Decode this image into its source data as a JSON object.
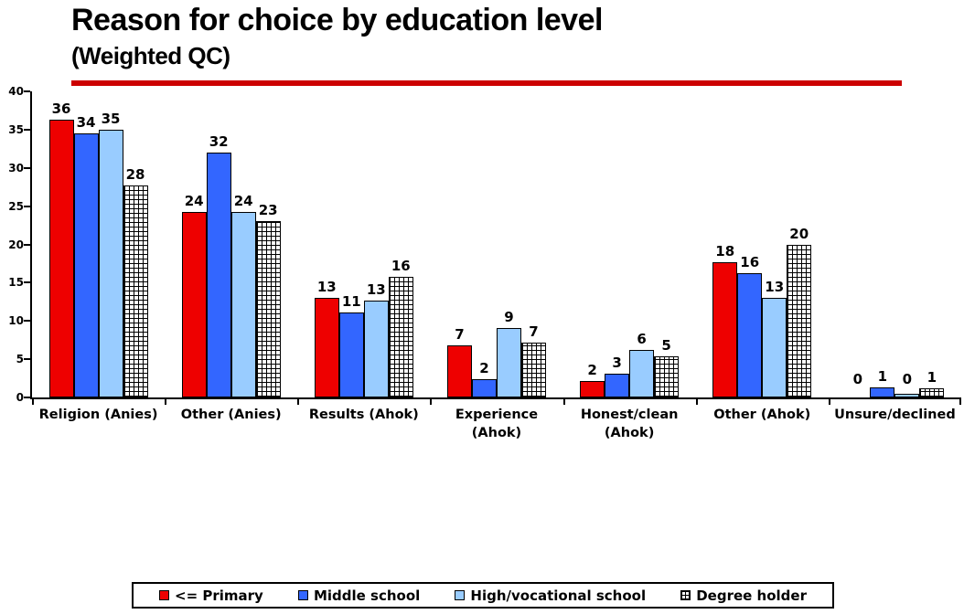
{
  "header": {
    "title": "Reason for choice by education level",
    "subtitle": "(Weighted QC)",
    "rule_color": "#CC0000"
  },
  "chart_data": {
    "type": "bar",
    "title": "Reason for choice by education level (Weighted QC)",
    "xlabel": "",
    "ylabel": "",
    "grid": false,
    "legend_position": "bottom",
    "y_axis": {
      "min": 0,
      "max": 40,
      "tick_step": 5,
      "ticks": [
        0,
        5,
        10,
        15,
        20,
        25,
        30,
        35,
        40
      ]
    },
    "categories": [
      "Religion (Anies)",
      "Other (Anies)",
      "Results (Ahok)",
      "Experience (Ahok)",
      "Honest/clean (Ahok)",
      "Other (Ahok)",
      "Unsure/declined"
    ],
    "series": [
      {
        "name": "<= Primary",
        "color": "#EE0000",
        "pattern": false,
        "labels": [
          "36",
          "24",
          "13",
          "7",
          "2",
          "18",
          "0"
        ],
        "values": [
          36.3,
          24.2,
          13.0,
          6.8,
          2.2,
          17.7,
          0
        ]
      },
      {
        "name": "Middle school",
        "color": "#3366FF",
        "pattern": false,
        "labels": [
          "34",
          "32",
          "11",
          "2",
          "3",
          "16",
          "1"
        ],
        "values": [
          34.5,
          32.0,
          11.1,
          2.4,
          3.1,
          16.2,
          1.3
        ]
      },
      {
        "name": "High/vocational school",
        "color": "#99CCFF",
        "pattern": false,
        "labels": [
          "35",
          "24",
          "13",
          "9",
          "6",
          "13",
          "0"
        ],
        "values": [
          35.0,
          24.2,
          12.6,
          9.1,
          6.2,
          13.0,
          0.5
        ]
      },
      {
        "name": "Degree holder",
        "color": "#FFFFFF",
        "pattern": true,
        "labels": [
          "28",
          "23",
          "16",
          "7",
          "5",
          "20",
          "1"
        ],
        "values": [
          27.7,
          23.1,
          15.8,
          7.2,
          5.4,
          19.9,
          1.2
        ]
      }
    ]
  }
}
